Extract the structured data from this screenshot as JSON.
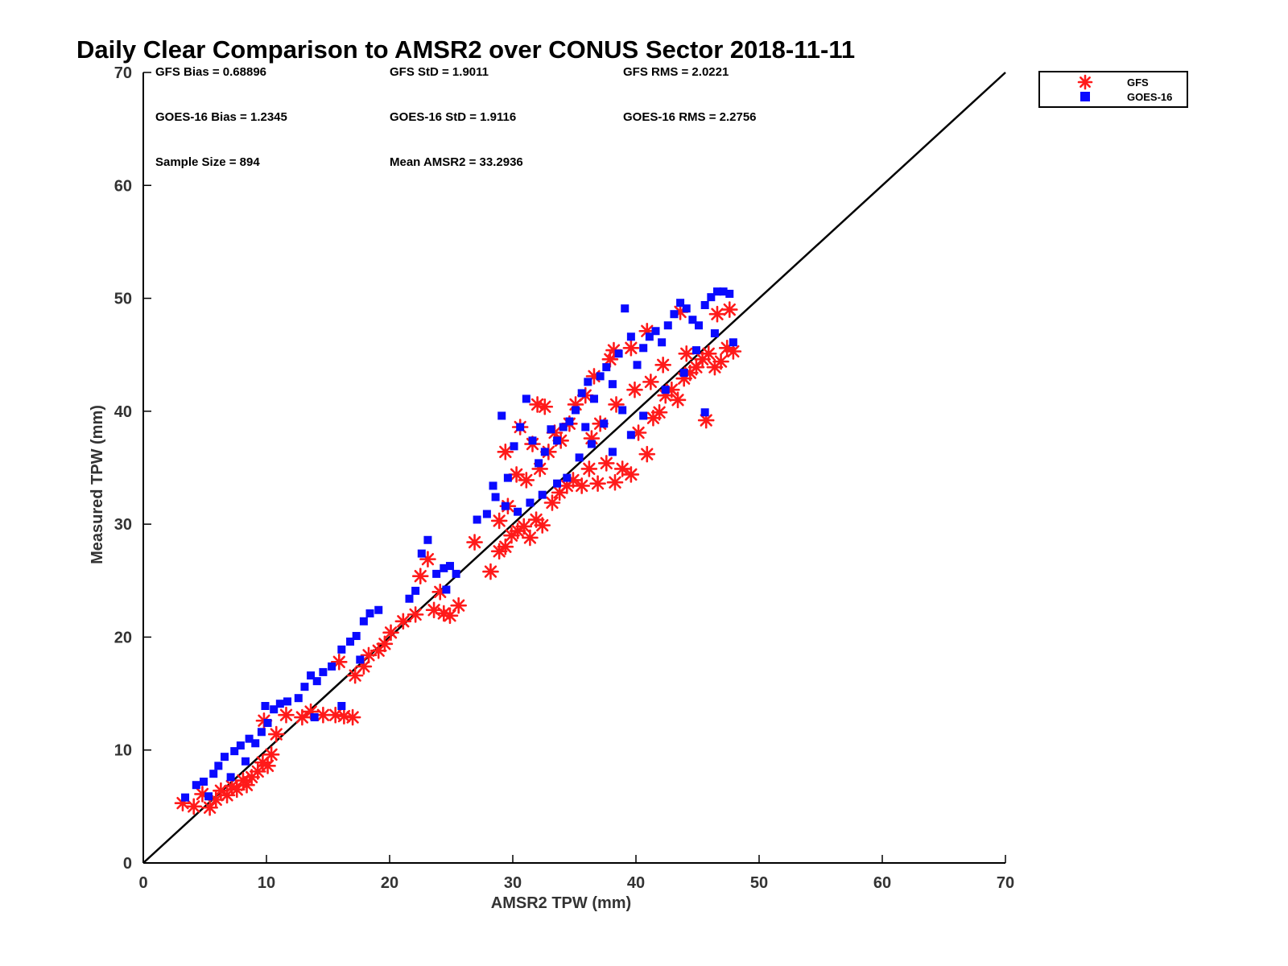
{
  "chart_data": {
    "type": "scatter",
    "title": "Daily Clear Comparison to AMSR2 over CONUS Sector 2018-11-11",
    "xlabel": "AMSR2 TPW (mm)",
    "ylabel": "Measured TPW (mm)",
    "xlim": [
      0,
      70
    ],
    "ylim": [
      0,
      70
    ],
    "xticks": [
      "0",
      "10",
      "20",
      "30",
      "40",
      "50",
      "60",
      "70"
    ],
    "yticks": [
      "0",
      "10",
      "20",
      "30",
      "40",
      "50",
      "60",
      "70"
    ],
    "grid": false,
    "legend_position": "top-right outside",
    "reference_line": {
      "name": "1:1 line",
      "x": [
        0,
        70
      ],
      "y": [
        0,
        70
      ],
      "color": "#000000"
    },
    "stats": {
      "gfs_bias": "GFS Bias = 0.68896",
      "gfs_std": "GFS StD = 1.9011",
      "gfs_rms": "GFS RMS = 2.0221",
      "goes_bias": "GOES-16 Bias = 1.2345",
      "goes_std": "GOES-16 StD = 1.9116",
      "goes_rms": "GOES-16 RMS = 2.2756",
      "sample_size": "Sample Size = 894",
      "mean_amsr2": "Mean AMSR2 = 33.2936"
    },
    "series": [
      {
        "name": "GFS",
        "marker": "asterisk",
        "color": "#ff1a1a",
        "points": [
          [
            3.2,
            5.3
          ],
          [
            4.1,
            5.0
          ],
          [
            4.8,
            6.1
          ],
          [
            5.4,
            4.9
          ],
          [
            5.9,
            5.6
          ],
          [
            6.3,
            6.4
          ],
          [
            6.8,
            6.0
          ],
          [
            7.2,
            6.8
          ],
          [
            7.6,
            6.5
          ],
          [
            8.1,
            7.3
          ],
          [
            8.4,
            6.9
          ],
          [
            8.8,
            7.6
          ],
          [
            9.3,
            8.1
          ],
          [
            9.7,
            8.9
          ],
          [
            10.1,
            8.6
          ],
          [
            10.4,
            9.6
          ],
          [
            9.8,
            12.6
          ],
          [
            10.8,
            11.4
          ],
          [
            11.6,
            13.1
          ],
          [
            12.9,
            12.9
          ],
          [
            13.6,
            13.4
          ],
          [
            14.6,
            13.1
          ],
          [
            15.6,
            13.1
          ],
          [
            16.3,
            13.0
          ],
          [
            17.0,
            12.9
          ],
          [
            15.9,
            17.8
          ],
          [
            17.2,
            16.6
          ],
          [
            17.9,
            17.4
          ],
          [
            18.3,
            18.4
          ],
          [
            19.1,
            18.8
          ],
          [
            19.6,
            19.4
          ],
          [
            20.1,
            20.4
          ],
          [
            21.1,
            21.4
          ],
          [
            22.1,
            22.0
          ],
          [
            22.5,
            25.4
          ],
          [
            23.1,
            26.9
          ],
          [
            23.6,
            22.4
          ],
          [
            24.4,
            22.1
          ],
          [
            24.9,
            21.9
          ],
          [
            25.6,
            22.8
          ],
          [
            24.1,
            24.0
          ],
          [
            26.9,
            28.4
          ],
          [
            28.2,
            25.8
          ],
          [
            28.9,
            27.6
          ],
          [
            29.4,
            28.0
          ],
          [
            29.9,
            29.0
          ],
          [
            30.4,
            29.4
          ],
          [
            30.9,
            29.8
          ],
          [
            31.4,
            28.8
          ],
          [
            31.9,
            30.4
          ],
          [
            32.4,
            29.9
          ],
          [
            32.0,
            40.6
          ],
          [
            32.6,
            40.4
          ],
          [
            29.4,
            36.4
          ],
          [
            30.3,
            34.4
          ],
          [
            31.1,
            33.9
          ],
          [
            32.2,
            34.9
          ],
          [
            33.2,
            31.9
          ],
          [
            33.8,
            32.8
          ],
          [
            34.4,
            33.4
          ],
          [
            34.9,
            33.9
          ],
          [
            35.6,
            33.4
          ],
          [
            36.2,
            34.9
          ],
          [
            36.9,
            33.6
          ],
          [
            37.6,
            35.4
          ],
          [
            38.3,
            33.7
          ],
          [
            38.9,
            34.9
          ],
          [
            39.6,
            34.4
          ],
          [
            40.2,
            38.1
          ],
          [
            40.9,
            36.2
          ],
          [
            41.4,
            39.4
          ],
          [
            41.9,
            39.9
          ],
          [
            42.4,
            41.4
          ],
          [
            42.9,
            41.9
          ],
          [
            43.4,
            41.0
          ],
          [
            43.9,
            42.9
          ],
          [
            44.4,
            43.4
          ],
          [
            44.9,
            43.9
          ],
          [
            45.4,
            44.6
          ],
          [
            45.9,
            45.1
          ],
          [
            46.4,
            43.9
          ],
          [
            46.9,
            44.4
          ],
          [
            47.4,
            45.6
          ],
          [
            47.9,
            45.3
          ],
          [
            45.7,
            39.2
          ],
          [
            47.6,
            49.0
          ],
          [
            46.6,
            48.6
          ],
          [
            43.6,
            48.8
          ],
          [
            40.9,
            47.1
          ],
          [
            39.6,
            45.6
          ],
          [
            38.2,
            45.4
          ],
          [
            37.9,
            44.6
          ],
          [
            36.6,
            43.1
          ],
          [
            35.9,
            41.4
          ],
          [
            35.1,
            40.6
          ],
          [
            34.6,
            38.9
          ],
          [
            33.9,
            37.4
          ],
          [
            33.4,
            38.1
          ],
          [
            36.4,
            37.6
          ],
          [
            37.1,
            38.9
          ],
          [
            38.4,
            40.6
          ],
          [
            39.9,
            41.9
          ],
          [
            41.2,
            42.6
          ],
          [
            42.2,
            44.1
          ],
          [
            44.1,
            45.1
          ],
          [
            30.6,
            38.6
          ],
          [
            31.6,
            37.1
          ],
          [
            32.9,
            36.4
          ],
          [
            28.9,
            30.3
          ],
          [
            29.6,
            31.6
          ]
        ]
      },
      {
        "name": "GOES-16",
        "marker": "square",
        "color": "#0a0aff",
        "points": [
          [
            3.4,
            5.8
          ],
          [
            4.3,
            6.9
          ],
          [
            4.9,
            7.2
          ],
          [
            5.3,
            5.9
          ],
          [
            5.7,
            7.9
          ],
          [
            6.1,
            8.6
          ],
          [
            6.6,
            9.4
          ],
          [
            7.1,
            7.6
          ],
          [
            7.4,
            9.9
          ],
          [
            7.9,
            10.4
          ],
          [
            8.3,
            9.0
          ],
          [
            8.6,
            11.0
          ],
          [
            9.1,
            10.6
          ],
          [
            9.6,
            11.6
          ],
          [
            10.1,
            12.4
          ],
          [
            10.6,
            13.6
          ],
          [
            11.1,
            14.1
          ],
          [
            11.7,
            14.3
          ],
          [
            9.9,
            13.9
          ],
          [
            13.1,
            15.6
          ],
          [
            13.6,
            16.6
          ],
          [
            14.1,
            16.1
          ],
          [
            14.6,
            16.9
          ],
          [
            15.3,
            17.4
          ],
          [
            16.1,
            18.9
          ],
          [
            16.8,
            19.6
          ],
          [
            17.3,
            20.1
          ],
          [
            17.9,
            21.4
          ],
          [
            18.4,
            22.1
          ],
          [
            19.1,
            22.4
          ],
          [
            17.6,
            18.0
          ],
          [
            21.6,
            23.4
          ],
          [
            22.1,
            24.1
          ],
          [
            22.6,
            27.4
          ],
          [
            23.1,
            28.6
          ],
          [
            23.8,
            25.6
          ],
          [
            24.4,
            26.1
          ],
          [
            24.9,
            26.3
          ],
          [
            25.4,
            25.6
          ],
          [
            24.6,
            24.2
          ],
          [
            27.1,
            30.4
          ],
          [
            27.9,
            30.9
          ],
          [
            28.6,
            32.4
          ],
          [
            29.1,
            39.6
          ],
          [
            29.6,
            34.1
          ],
          [
            30.1,
            36.9
          ],
          [
            30.6,
            38.6
          ],
          [
            31.1,
            41.1
          ],
          [
            31.6,
            37.4
          ],
          [
            32.1,
            35.4
          ],
          [
            32.6,
            36.4
          ],
          [
            33.1,
            38.4
          ],
          [
            33.6,
            37.4
          ],
          [
            34.1,
            38.6
          ],
          [
            34.6,
            39.1
          ],
          [
            35.1,
            40.1
          ],
          [
            35.6,
            41.6
          ],
          [
            36.1,
            42.6
          ],
          [
            36.6,
            41.1
          ],
          [
            37.1,
            43.1
          ],
          [
            37.6,
            43.9
          ],
          [
            38.1,
            42.4
          ],
          [
            38.6,
            45.1
          ],
          [
            39.1,
            49.1
          ],
          [
            39.6,
            46.6
          ],
          [
            40.1,
            44.1
          ],
          [
            40.6,
            45.6
          ],
          [
            41.1,
            46.6
          ],
          [
            41.6,
            47.1
          ],
          [
            42.1,
            46.1
          ],
          [
            42.6,
            47.6
          ],
          [
            43.1,
            48.6
          ],
          [
            43.6,
            49.6
          ],
          [
            44.1,
            49.1
          ],
          [
            44.6,
            48.1
          ],
          [
            45.1,
            47.6
          ],
          [
            45.6,
            49.4
          ],
          [
            46.1,
            50.1
          ],
          [
            46.6,
            50.6
          ],
          [
            47.1,
            50.6
          ],
          [
            47.6,
            50.4
          ],
          [
            47.9,
            46.1
          ],
          [
            45.6,
            39.9
          ],
          [
            38.9,
            40.1
          ],
          [
            37.4,
            38.9
          ],
          [
            36.4,
            37.1
          ],
          [
            35.4,
            35.9
          ],
          [
            34.4,
            34.1
          ],
          [
            33.6,
            33.6
          ],
          [
            32.4,
            32.6
          ],
          [
            31.4,
            31.9
          ],
          [
            30.4,
            31.1
          ],
          [
            29.4,
            31.6
          ],
          [
            28.4,
            33.4
          ],
          [
            35.9,
            38.6
          ],
          [
            38.1,
            36.4
          ],
          [
            39.6,
            37.9
          ],
          [
            40.6,
            39.6
          ],
          [
            42.4,
            41.9
          ],
          [
            43.9,
            43.4
          ],
          [
            44.9,
            45.4
          ],
          [
            46.4,
            46.9
          ],
          [
            16.1,
            13.9
          ],
          [
            13.9,
            12.9
          ],
          [
            12.6,
            14.6
          ]
        ]
      }
    ]
  }
}
